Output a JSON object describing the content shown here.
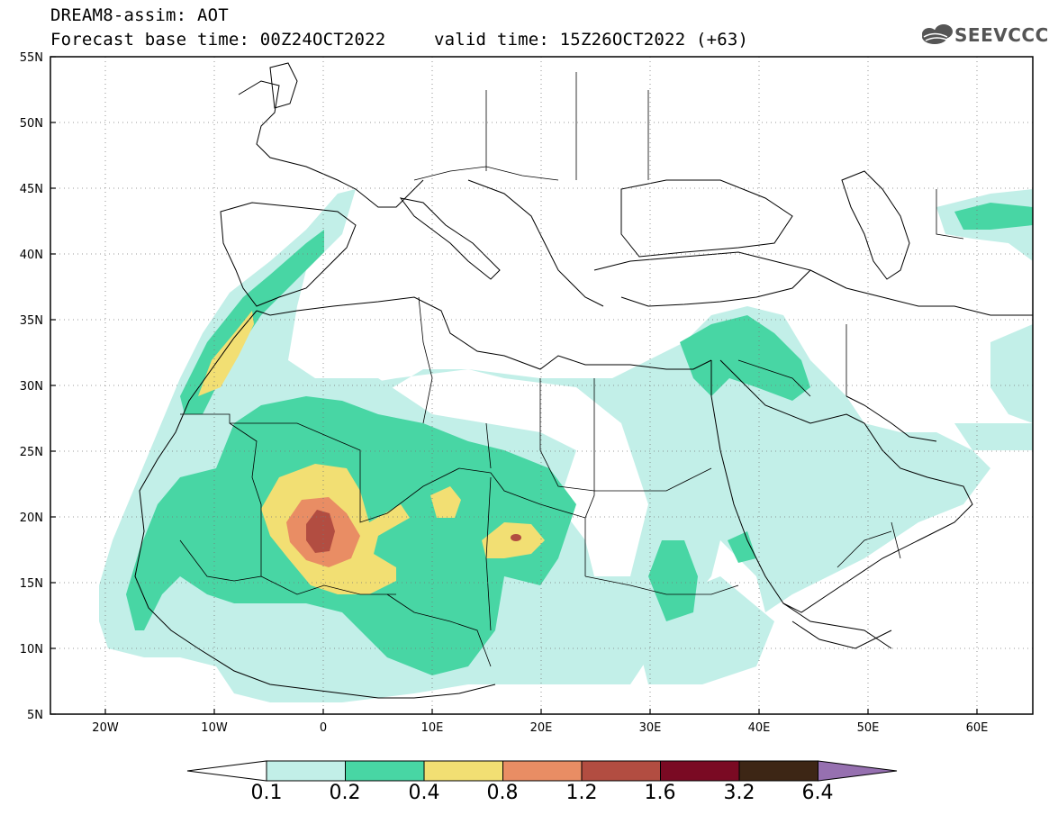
{
  "title": {
    "line1": "DREAM8-assim: AOT",
    "line2_left": "Forecast base time: 00Z24OCT2022",
    "line2_right": "valid time: 15Z26OCT2022 (+63)"
  },
  "logo": {
    "text": "SEEVCCC",
    "icon": "cloud-icon"
  },
  "axes": {
    "lat_ticks": [
      "55N",
      "50N",
      "45N",
      "40N",
      "35N",
      "30N",
      "25N",
      "20N",
      "15N",
      "10N",
      "5N"
    ],
    "lon_ticks": [
      "20W",
      "10W",
      "0",
      "10E",
      "20E",
      "30E",
      "40E",
      "50E",
      "60E"
    ],
    "lat_range": [
      5,
      55
    ],
    "lon_range": [
      -25,
      65
    ]
  },
  "colorbar": {
    "labels": [
      "0.1",
      "0.2",
      "0.4",
      "0.8",
      "1.2",
      "1.6",
      "3.2",
      "6.4"
    ],
    "colors": [
      "#c2efe8",
      "#48d6a4",
      "#f2df73",
      "#e98d64",
      "#b24d41",
      "#7a0a23",
      "#3d2615",
      "#9670b0"
    ]
  }
}
